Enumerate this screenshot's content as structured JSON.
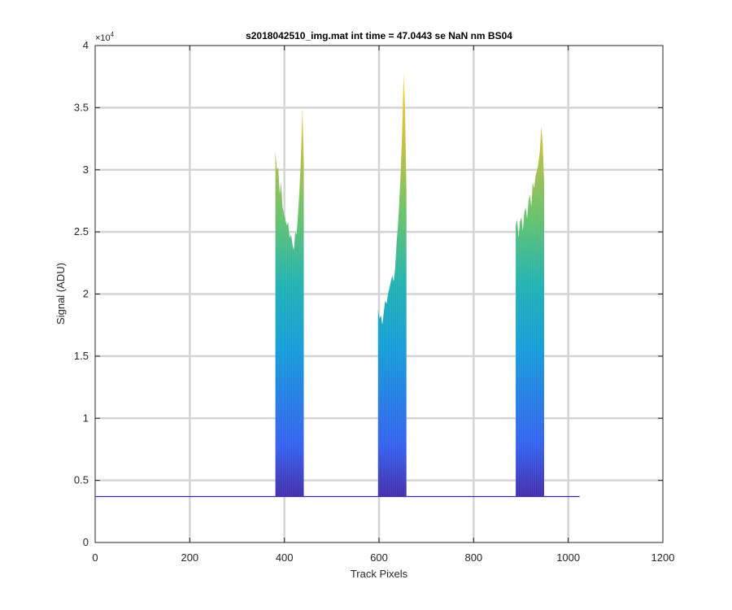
{
  "chart_data": {
    "type": "area",
    "title": "s2018042510_img.mat int time = 47.0443 se  NaN nm BS04",
    "xlabel": "Track Pixels",
    "ylabel": "Signal (ADU)",
    "y_multiplier_label": "×10",
    "y_multiplier_exponent": "4",
    "xlim": [
      0,
      1200
    ],
    "ylim": [
      0,
      40000
    ],
    "x_ticks": [
      0,
      200,
      400,
      600,
      800,
      1000,
      1200
    ],
    "x_tick_labels": [
      "0",
      "200",
      "400",
      "600",
      "800",
      "1000",
      "1200"
    ],
    "y_ticks": [
      0,
      5000,
      10000,
      15000,
      20000,
      25000,
      30000,
      35000,
      40000
    ],
    "y_tick_labels": [
      "0",
      "0.5",
      "1",
      "1.5",
      "2",
      "2.5",
      "3",
      "3.5",
      "4"
    ],
    "grid": true,
    "colormap": [
      "#3e26a8",
      "#2e5cf0",
      "#0d9bd8",
      "#1ab0b0",
      "#5ec06a",
      "#c5bd37",
      "#f9d227"
    ],
    "baseline": {
      "x_range": [
        1,
        1024
      ],
      "value": 3700
    },
    "series": [
      {
        "x": [
          381,
          384,
          387,
          390,
          393,
          396,
          399,
          402,
          405,
          408,
          411,
          414,
          417,
          420,
          423,
          426,
          429,
          432,
          435,
          438,
          441
        ],
        "y": [
          31500,
          30000,
          30200,
          28000,
          29000,
          27000,
          26500,
          26000,
          25500,
          25800,
          24500,
          24800,
          24000,
          23500,
          25000,
          24800,
          26500,
          28500,
          31000,
          35000,
          30500
        ]
      },
      {
        "x": [
          598,
          601,
          604,
          607,
          610,
          613,
          616,
          619,
          622,
          625,
          628,
          631,
          634,
          637,
          640,
          643,
          646,
          649,
          652,
          655,
          658
        ],
        "y": [
          18800,
          18000,
          18300,
          17500,
          18500,
          19500,
          19200,
          20000,
          20500,
          21000,
          21500,
          21000,
          22000,
          24000,
          25500,
          27500,
          30000,
          33000,
          37800,
          35000,
          28000
        ]
      },
      {
        "x": [
          889,
          892,
          895,
          898,
          901,
          904,
          907,
          910,
          913,
          916,
          919,
          922,
          925,
          928,
          931,
          934,
          937,
          940,
          943,
          946,
          949
        ],
        "y": [
          25500,
          26000,
          24500,
          25800,
          26200,
          25000,
          26500,
          27000,
          26000,
          27500,
          28000,
          27000,
          29000,
          28500,
          29500,
          30000,
          30500,
          31500,
          33500,
          32000,
          29000
        ]
      }
    ]
  }
}
